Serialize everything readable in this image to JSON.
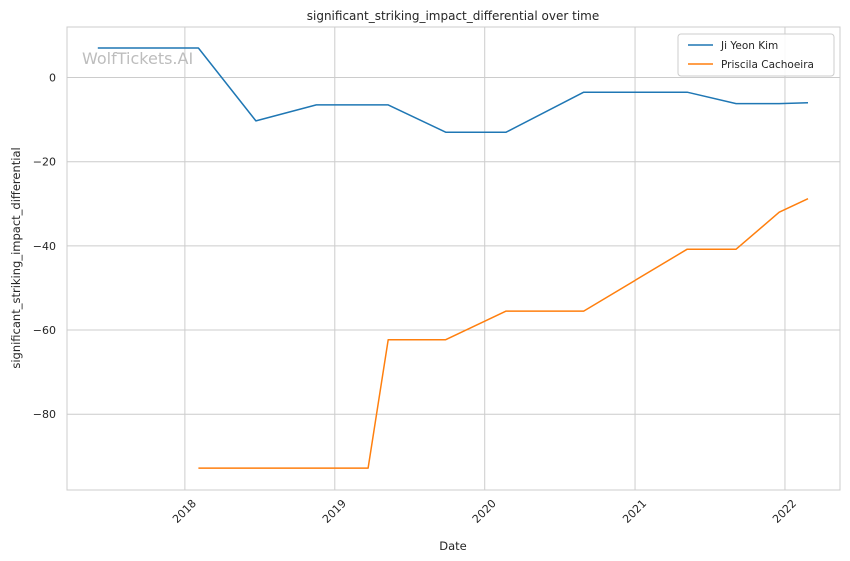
{
  "chart_data": {
    "type": "line",
    "title": "significant_striking_impact_differential over time",
    "xlabel": "Date",
    "ylabel": "significant_striking_impact_differential",
    "watermark": "WolfTickets.AI",
    "x_ticks": [
      "2018",
      "2019",
      "2020",
      "2021",
      "2022"
    ],
    "y_ticks": [
      0,
      -20,
      -40,
      -60,
      -80
    ],
    "xlim": [
      "2017-03-20",
      "2022-05-15"
    ],
    "ylim": [
      -98,
      12
    ],
    "grid": true,
    "legend_position": "top-right",
    "series": [
      {
        "name": "Ji Yeon Kim",
        "color": "#1f77b4",
        "x": [
          "2017-06-03",
          "2018-02-03",
          "2018-06-23",
          "2018-11-17",
          "2019-05-11",
          "2019-09-28",
          "2020-02-22",
          "2020-08-29",
          "2021-05-08",
          "2021-09-04",
          "2021-12-18",
          "2022-02-26"
        ],
        "y": [
          7.0,
          7.0,
          -10.3,
          -6.5,
          -6.5,
          -13.0,
          -13.0,
          -3.5,
          -3.5,
          -6.2,
          -6.2,
          -6.0
        ]
      },
      {
        "name": "Priscila Cachoeira",
        "color": "#ff7f0e",
        "x": [
          "2018-02-03",
          "2019-03-23",
          "2019-05-11",
          "2019-09-28",
          "2020-02-22",
          "2020-08-29",
          "2021-05-08",
          "2021-09-04",
          "2021-12-18",
          "2022-02-26"
        ],
        "y": [
          -92.8,
          -92.8,
          -62.3,
          -62.3,
          -55.5,
          -55.5,
          -40.8,
          -40.8,
          -32.0,
          -28.8
        ]
      }
    ]
  }
}
